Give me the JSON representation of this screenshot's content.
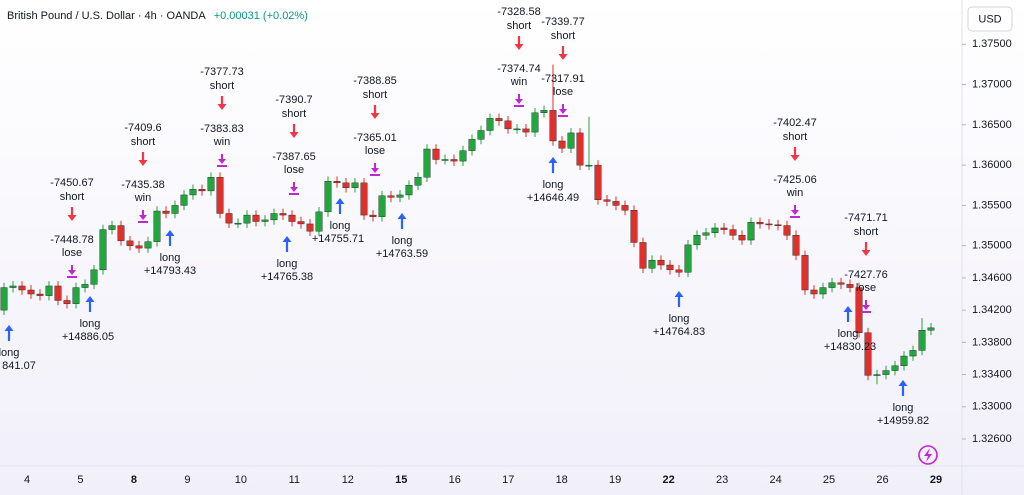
{
  "chart_data": {
    "type": "candlestick",
    "title": "British Pound / U.S. Dollar · 4h · OANDA",
    "change": "+0.00031 (+0.02%)",
    "currency": "USD",
    "up_color": "#22a63e",
    "down_color": "#e0302c",
    "grid": false,
    "ylim": [
      1.32265,
      1.3805
    ],
    "yticks": [
      {
        "value": 1.375,
        "label": "1.37500"
      },
      {
        "value": 1.37,
        "label": "1.37000"
      },
      {
        "value": 1.365,
        "label": "1.36500"
      },
      {
        "value": 1.36,
        "label": "1.36000"
      },
      {
        "value": 1.355,
        "label": "1.35500"
      },
      {
        "value": 1.35,
        "label": "1.35000"
      },
      {
        "value": 1.346,
        "label": "1.34600"
      },
      {
        "value": 1.342,
        "label": "1.34200"
      },
      {
        "value": 1.338,
        "label": "1.33800"
      },
      {
        "value": 1.334,
        "label": "1.33400"
      },
      {
        "value": 1.33,
        "label": "1.33000"
      },
      {
        "value": 1.326,
        "label": "1.32600"
      }
    ],
    "x_labels": [
      {
        "text": "4",
        "bold": false
      },
      {
        "text": "5",
        "bold": false
      },
      {
        "text": "8",
        "bold": true
      },
      {
        "text": "9",
        "bold": false
      },
      {
        "text": "10",
        "bold": false
      },
      {
        "text": "11",
        "bold": false
      },
      {
        "text": "12",
        "bold": false
      },
      {
        "text": "15",
        "bold": true
      },
      {
        "text": "16",
        "bold": false
      },
      {
        "text": "17",
        "bold": false
      },
      {
        "text": "18",
        "bold": false
      },
      {
        "text": "19",
        "bold": false
      },
      {
        "text": "22",
        "bold": true
      },
      {
        "text": "23",
        "bold": false
      },
      {
        "text": "24",
        "bold": false
      },
      {
        "text": "25",
        "bold": false
      },
      {
        "text": "26",
        "bold": false
      },
      {
        "text": "29",
        "bold": true
      }
    ],
    "open": [
      1.342,
      1.3448,
      1.345,
      1.3445,
      1.344,
      1.3438,
      1.345,
      1.3432,
      1.3428,
      1.3448,
      1.3452,
      1.347,
      1.352,
      1.3525,
      1.3506,
      1.35,
      1.3497,
      1.3505,
      1.3543,
      1.354,
      1.355,
      1.3563,
      1.357,
      1.3568,
      1.3585,
      1.354,
      1.3528,
      1.3528,
      1.3538,
      1.353,
      1.3532,
      1.354,
      1.3538,
      1.353,
      1.3527,
      1.3518,
      1.3542,
      1.358,
      1.3578,
      1.3572,
      1.3578,
      1.3538,
      1.3536,
      1.3562,
      1.356,
      1.3563,
      1.3575,
      1.3585,
      1.362,
      1.3607,
      1.3607,
      1.3605,
      1.3618,
      1.3632,
      1.3643,
      1.3658,
      1.3655,
      1.3645,
      1.3645,
      1.3641,
      1.3665,
      1.3668,
      1.363,
      1.3621,
      1.364,
      1.36,
      1.36,
      1.3557,
      1.3555,
      1.355,
      1.3544,
      1.3504,
      1.3472,
      1.3482,
      1.3476,
      1.347,
      1.3467,
      1.3501,
      1.3513,
      1.3516,
      1.3522,
      1.352,
      1.3513,
      1.3507,
      1.3529,
      1.3527,
      1.3526,
      1.3525,
      1.3513,
      1.3488,
      1.3445,
      1.344,
      1.3448,
      1.3454,
      1.3452,
      1.3448,
      1.3392,
      1.3339,
      1.334,
      1.3345,
      1.3351,
      1.3363,
      1.337,
      1.3395
    ],
    "high": [
      1.3454,
      1.3456,
      1.3456,
      1.3451,
      1.3446,
      1.3456,
      1.3456,
      1.3438,
      1.3454,
      1.3458,
      1.3476,
      1.3526,
      1.3531,
      1.3531,
      1.3512,
      1.3506,
      1.3511,
      1.3549,
      1.3549,
      1.3556,
      1.3569,
      1.3576,
      1.3576,
      1.3591,
      1.3591,
      1.3546,
      1.3534,
      1.3544,
      1.3544,
      1.3538,
      1.3546,
      1.3546,
      1.3544,
      1.3536,
      1.3533,
      1.3548,
      1.3586,
      1.3586,
      1.3584,
      1.3584,
      1.3584,
      1.3544,
      1.3568,
      1.3568,
      1.3569,
      1.3581,
      1.3591,
      1.3626,
      1.3626,
      1.3613,
      1.3613,
      1.3624,
      1.3638,
      1.3649,
      1.3664,
      1.3664,
      1.3661,
      1.3651,
      1.3651,
      1.3671,
      1.3674,
      1.3725,
      1.3636,
      1.3646,
      1.3646,
      1.366,
      1.3606,
      1.3563,
      1.3561,
      1.3556,
      1.355,
      1.351,
      1.3488,
      1.3488,
      1.3482,
      1.3476,
      1.3507,
      1.3519,
      1.3522,
      1.3528,
      1.3528,
      1.3526,
      1.3519,
      1.3535,
      1.3535,
      1.3533,
      1.3532,
      1.3531,
      1.3519,
      1.3494,
      1.3451,
      1.3454,
      1.346,
      1.346,
      1.3458,
      1.3454,
      1.3398,
      1.3346,
      1.3351,
      1.3357,
      1.3369,
      1.3376,
      1.341,
      1.3404
    ],
    "low": [
      1.3414,
      1.3442,
      1.3439,
      1.3434,
      1.3432,
      1.3432,
      1.3426,
      1.3422,
      1.3422,
      1.3442,
      1.3446,
      1.3464,
      1.3514,
      1.35,
      1.3494,
      1.3491,
      1.3491,
      1.3499,
      1.3534,
      1.3534,
      1.3544,
      1.3557,
      1.3562,
      1.3562,
      1.3534,
      1.3522,
      1.3522,
      1.3522,
      1.3524,
      1.3524,
      1.3526,
      1.3532,
      1.3524,
      1.3521,
      1.3512,
      1.3512,
      1.3536,
      1.3572,
      1.3566,
      1.3566,
      1.3532,
      1.353,
      1.353,
      1.3554,
      1.3554,
      1.3557,
      1.3569,
      1.3579,
      1.3601,
      1.3601,
      1.3599,
      1.3599,
      1.3612,
      1.3626,
      1.3637,
      1.3649,
      1.3639,
      1.3639,
      1.3635,
      1.3635,
      1.3659,
      1.3624,
      1.3615,
      1.3615,
      1.3594,
      1.3594,
      1.3551,
      1.3549,
      1.3544,
      1.3538,
      1.3498,
      1.3466,
      1.3466,
      1.347,
      1.3464,
      1.3461,
      1.3461,
      1.3495,
      1.3507,
      1.351,
      1.3514,
      1.3507,
      1.3501,
      1.3501,
      1.3521,
      1.352,
      1.3519,
      1.3507,
      1.3482,
      1.3439,
      1.3434,
      1.3434,
      1.3442,
      1.3446,
      1.3442,
      1.3386,
      1.3333,
      1.3328,
      1.3334,
      1.3339,
      1.3345,
      1.3357,
      1.3364,
      1.3389
    ],
    "close": [
      1.3448,
      1.345,
      1.3445,
      1.344,
      1.3438,
      1.345,
      1.3432,
      1.3428,
      1.3448,
      1.3452,
      1.347,
      1.352,
      1.3525,
      1.3506,
      1.35,
      1.3497,
      1.3505,
      1.3543,
      1.354,
      1.355,
      1.3563,
      1.357,
      1.3568,
      1.3585,
      1.354,
      1.3528,
      1.3528,
      1.3538,
      1.353,
      1.3532,
      1.354,
      1.3538,
      1.353,
      1.3527,
      1.3518,
      1.3542,
      1.358,
      1.3578,
      1.3572,
      1.3578,
      1.3538,
      1.3536,
      1.3562,
      1.356,
      1.3563,
      1.3575,
      1.3585,
      1.362,
      1.3607,
      1.3607,
      1.3605,
      1.3618,
      1.3632,
      1.3643,
      1.3658,
      1.3655,
      1.3645,
      1.3645,
      1.3641,
      1.3665,
      1.3668,
      1.363,
      1.3621,
      1.364,
      1.36,
      1.36,
      1.3557,
      1.3555,
      1.355,
      1.3544,
      1.3504,
      1.3472,
      1.3482,
      1.3476,
      1.347,
      1.3467,
      1.3501,
      1.3513,
      1.3516,
      1.3522,
      1.352,
      1.3513,
      1.3507,
      1.3529,
      1.3527,
      1.3526,
      1.3525,
      1.3513,
      1.3488,
      1.3445,
      1.344,
      1.3448,
      1.3454,
      1.3452,
      1.3448,
      1.3392,
      1.3339,
      1.334,
      1.3345,
      1.3351,
      1.3363,
      1.337,
      1.3395,
      1.3398
    ],
    "entries": [
      {
        "action": "long",
        "result": "841.07"
      },
      {
        "action": "long",
        "result": "+14886.05"
      },
      {
        "action": "long",
        "result": "+14793.43"
      },
      {
        "action": "long",
        "result": "+14765.38"
      },
      {
        "action": "long",
        "result": "+14755.71"
      },
      {
        "action": "long",
        "result": "+14763.59"
      },
      {
        "action": "long",
        "result": "+14646.49"
      },
      {
        "action": "long",
        "result": "+14764.83"
      },
      {
        "action": "long",
        "result": "+14830.23"
      },
      {
        "action": "long",
        "result": "+14959.82"
      }
    ],
    "exits": [
      {
        "signal_price": "-7450.67",
        "signal": "short",
        "exit_price": "-7448.78",
        "outcome": "lose"
      },
      {
        "signal_price": "-7409.6",
        "signal": "short",
        "exit_price": "-7435.38",
        "outcome": "win"
      },
      {
        "signal_price": "-7377.73",
        "signal": "short",
        "exit_price": "-7383.83",
        "outcome": "win"
      },
      {
        "signal_price": "-7390.7",
        "signal": "short",
        "exit_price": "-7387.65",
        "outcome": "lose"
      },
      {
        "signal_price": "-7388.85",
        "signal": "short",
        "exit_price": "-7365.01",
        "outcome": "lose"
      },
      {
        "signal_price": "-7328.58",
        "signal": "short",
        "exit_price": "-7374.74",
        "outcome": "win"
      },
      {
        "signal_price": "-7339.77",
        "signal": "short",
        "exit_price": "-7317.91",
        "outcome": "lose"
      },
      {
        "signal_price": "-7402.47",
        "signal": "short",
        "exit_price": "-7425.06",
        "outcome": "win"
      },
      {
        "signal_price": "-7471.71",
        "signal": "short",
        "exit_price": "-7427.76",
        "outcome": "lose"
      }
    ]
  }
}
